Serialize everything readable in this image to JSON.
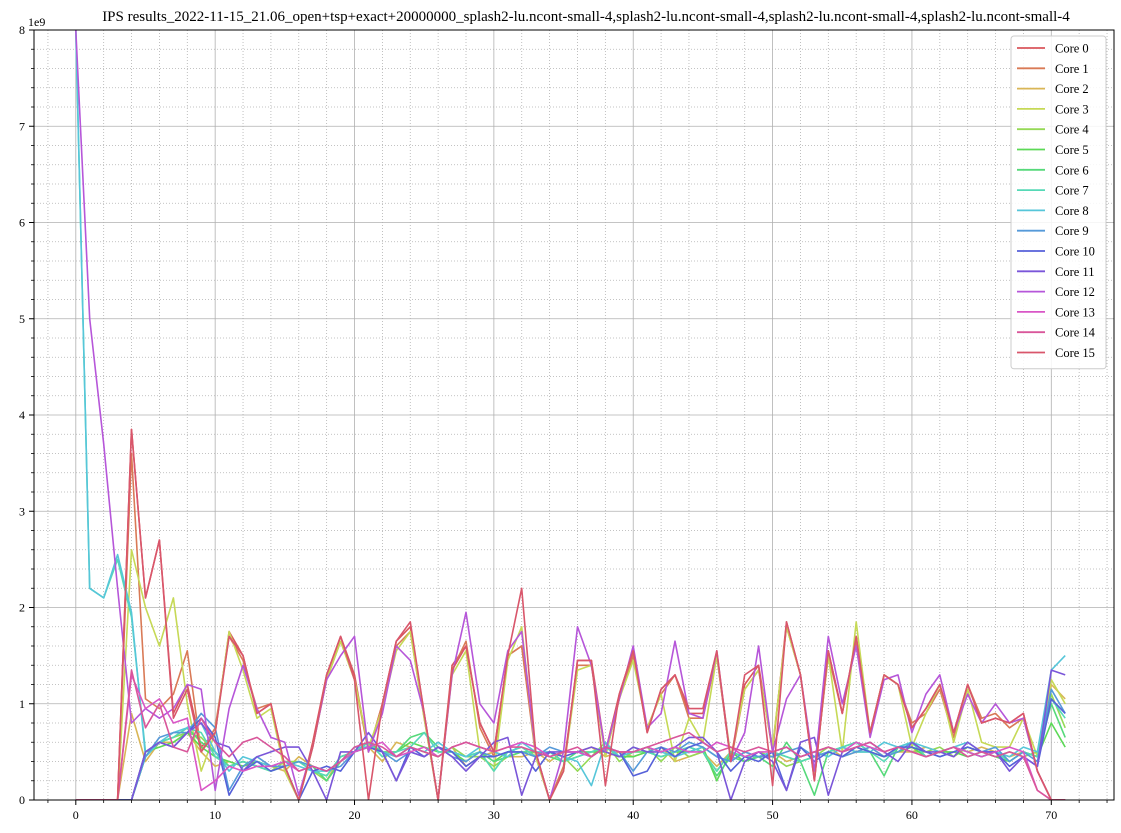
{
  "chart_data": {
    "type": "line",
    "title": "IPS results_2022-11-15_21.06_open+tsp+exact+20000000_splash2-lu.ncont-small-4,splash2-lu.ncont-small-4,splash2-lu.ncont-small-4,splash2-lu.ncont-small-4",
    "xlabel": "",
    "ylabel": "",
    "y_exponent_label": "1e9",
    "xlim": [
      -3,
      74.5
    ],
    "ylim": [
      0,
      8
    ],
    "x_ticks": [
      0,
      10,
      20,
      30,
      40,
      50,
      60,
      70
    ],
    "y_ticks": [
      0,
      1,
      2,
      3,
      4,
      5,
      6,
      7,
      8
    ],
    "grid": "major solid, minor dotted",
    "legend_position": "top-right",
    "series": [
      {
        "name": "Core 0",
        "color": "#d9565c",
        "values": [
          0,
          0,
          0,
          0,
          3.85,
          2.1,
          2.7,
          0.9,
          1.2,
          0.55,
          0.7,
          1.75,
          1.5,
          0.9,
          1.0,
          0.35,
          0,
          0.6,
          1.3,
          1.7,
          1.3,
          0.5,
          1.0,
          1.65,
          1.8,
          0.9,
          0,
          1.4,
          1.6,
          0.8,
          0.5,
          1.5,
          1.6,
          0.5,
          0,
          0.3,
          1.45,
          1.45,
          0.5,
          1.1,
          1.55,
          0.7,
          1.15,
          1.3,
          0.9,
          0.9,
          1.5,
          0.4,
          1.2,
          1.4,
          0.5,
          1.85,
          1.3,
          0.2,
          1.55,
          0.9,
          1.7,
          0.7,
          1.3,
          1.2,
          0.75,
          0.95,
          1.2,
          0.7,
          1.2,
          0.8,
          0.85,
          0.8,
          0.9,
          0.3,
          0,
          0
        ]
      },
      {
        "name": "Core 1",
        "color": "#d97a56",
        "values": [
          0,
          0,
          0,
          0,
          3.6,
          1.05,
          0.95,
          1.1,
          1.55,
          0.5,
          0.75,
          1.7,
          1.45,
          0.95,
          1.0,
          0.3,
          0,
          0.55,
          1.25,
          1.65,
          1.25,
          0.5,
          1.0,
          1.6,
          1.75,
          0.85,
          0,
          1.35,
          1.65,
          0.75,
          0.45,
          1.5,
          1.6,
          0.45,
          0,
          0.35,
          1.4,
          1.4,
          0.45,
          1.05,
          1.5,
          0.75,
          1.1,
          1.3,
          0.85,
          0.85,
          1.5,
          0.4,
          1.15,
          1.35,
          0.55,
          1.8,
          1.3,
          0.25,
          1.5,
          0.9,
          1.65,
          0.7,
          1.3,
          1.2,
          0.8,
          0.9,
          1.15,
          0.65,
          1.2,
          0.85,
          0.9,
          0.75,
          0.85,
          0.3,
          0,
          0
        ]
      },
      {
        "name": "Core 2",
        "color": "#d9b656",
        "values": [
          0,
          0,
          0,
          0,
          0.9,
          0.4,
          0.6,
          0.6,
          0.7,
          0.5,
          0.35,
          0.4,
          0.35,
          0.4,
          0.35,
          0.3,
          0.45,
          0.35,
          0.2,
          0.45,
          0.5,
          0.55,
          0.4,
          0.6,
          0.55,
          0.5,
          0.45,
          0.55,
          0.35,
          0.45,
          0.5,
          0.45,
          0.45,
          0.5,
          0.4,
          0.5,
          0.5,
          0.55,
          0.45,
          0.5,
          0.45,
          0.5,
          0.55,
          0.4,
          0.45,
          0.5,
          0.35,
          0.5,
          0.4,
          0.45,
          0.5,
          0.4,
          0.45,
          0.5,
          0.55,
          0.45,
          0.5,
          0.55,
          0.45,
          0.5,
          0.5,
          0.55,
          0.5,
          0.55,
          0.5,
          0.55,
          0.5,
          0.45,
          0.5,
          0.45,
          1.2,
          1.05
        ]
      },
      {
        "name": "Core 3",
        "color": "#c6d956",
        "values": [
          0,
          0,
          0,
          0,
          2.6,
          2.0,
          1.6,
          2.1,
          1.0,
          0.3,
          0.7,
          1.75,
          1.35,
          0.85,
          0.95,
          0.3,
          0,
          0.55,
          1.25,
          1.65,
          1.25,
          0.55,
          0.95,
          1.55,
          1.75,
          0.85,
          0,
          1.3,
          1.55,
          0.5,
          0.3,
          1.45,
          1.8,
          0.45,
          0,
          0.3,
          1.35,
          1.4,
          0.45,
          1.05,
          1.45,
          0.75,
          1.1,
          0.4,
          0.85,
          0.6,
          1.5,
          0.45,
          1.15,
          1.35,
          0.55,
          1.8,
          1.3,
          0.25,
          1.5,
          0.5,
          1.85,
          0.7,
          1.3,
          1.2,
          0.55,
          0.9,
          1.2,
          0.6,
          1.15,
          0.6,
          0.55,
          0.55,
          0.85,
          0.45,
          1.25,
          1.0
        ]
      },
      {
        "name": "Core 4",
        "color": "#95d956",
        "values": [
          0,
          0,
          0,
          0,
          0,
          0.45,
          0.6,
          0.65,
          0.7,
          0.65,
          0.5,
          0.35,
          0.4,
          0.35,
          0.3,
          0.4,
          0.4,
          0.3,
          0.2,
          0.4,
          0.5,
          0.55,
          0.5,
          0.45,
          0.55,
          0.5,
          0.45,
          0.55,
          0.45,
          0.45,
          0.35,
          0.45,
          0.5,
          0.45,
          0.5,
          0.45,
          0.3,
          0.45,
          0.6,
          0.4,
          0.5,
          0.55,
          0.4,
          0.55,
          0.45,
          0.5,
          0.3,
          0.5,
          0.45,
          0.5,
          0.45,
          0.35,
          0.4,
          0.45,
          0.55,
          0.5,
          0.55,
          0.5,
          0.45,
          0.55,
          0.5,
          0.5,
          0.55,
          0.45,
          0.55,
          0.5,
          0.45,
          0.5,
          0.45,
          0.5,
          1.1,
          0.75
        ]
      },
      {
        "name": "Core 5",
        "color": "#5cd956",
        "values": [
          0,
          0,
          0,
          0,
          0,
          0.5,
          0.55,
          0.6,
          0.7,
          0.55,
          0.45,
          0.4,
          0.35,
          0.4,
          0.35,
          0.35,
          0.4,
          0.3,
          0.25,
          0.45,
          0.5,
          0.6,
          0.45,
          0.5,
          0.6,
          0.55,
          0.5,
          0.5,
          0.4,
          0.5,
          0.4,
          0.5,
          0.55,
          0.45,
          0.5,
          0.4,
          0.45,
          0.5,
          0.5,
          0.45,
          0.45,
          0.5,
          0.45,
          0.5,
          0.5,
          0.55,
          0.2,
          0.5,
          0.4,
          0.45,
          0.5,
          0.45,
          0.4,
          0.45,
          0.5,
          0.55,
          0.5,
          0.5,
          0.45,
          0.5,
          0.55,
          0.45,
          0.5,
          0.5,
          0.45,
          0.5,
          0.45,
          0.4,
          0.5,
          0.45,
          0.8,
          0.55
        ]
      },
      {
        "name": "Core 6",
        "color": "#56d97a",
        "values": [
          0,
          0,
          0,
          0,
          0,
          0.45,
          0.6,
          0.65,
          0.75,
          0.6,
          0.5,
          0.35,
          0.4,
          0.35,
          0.3,
          0.35,
          0.4,
          0.35,
          0.2,
          0.4,
          0.5,
          0.6,
          0.5,
          0.5,
          0.65,
          0.7,
          0.55,
          0.5,
          0.45,
          0.5,
          0.4,
          0.45,
          0.5,
          0.5,
          0.45,
          0.4,
          0.5,
          0.5,
          0.55,
          0.45,
          0.5,
          0.5,
          0.45,
          0.5,
          0.55,
          0.5,
          0.25,
          0.45,
          0.4,
          0.45,
          0.35,
          0.6,
          0.4,
          0.05,
          0.5,
          0.55,
          0.6,
          0.5,
          0.25,
          0.55,
          0.6,
          0.45,
          0.5,
          0.55,
          0.5,
          0.45,
          0.5,
          0.4,
          0.5,
          0.45,
          1.0,
          0.65
        ]
      },
      {
        "name": "Core 7",
        "color": "#56d9b6",
        "values": [
          8,
          2.2,
          2.1,
          2.5,
          1.9,
          0.5,
          0.6,
          0.65,
          0.75,
          0.7,
          0.45,
          0.35,
          0.4,
          0.35,
          0.3,
          0.35,
          0.4,
          0.3,
          0.25,
          0.45,
          0.5,
          0.6,
          0.45,
          0.5,
          0.55,
          0.7,
          0.5,
          0.5,
          0.45,
          0.5,
          0.3,
          0.5,
          0.55,
          0.45,
          0.5,
          0.4,
          0.45,
          0.5,
          0.55,
          0.45,
          0.55,
          0.5,
          0.45,
          0.5,
          0.55,
          0.5,
          0.3,
          0.5,
          0.45,
          0.45,
          0.5,
          0.45,
          0.4,
          0.45,
          0.5,
          0.55,
          0.6,
          0.5,
          0.4,
          0.55,
          0.6,
          0.45,
          0.5,
          0.55,
          0.5,
          0.45,
          0.5,
          0.4,
          0.5,
          0.45,
          1.05,
          0.85
        ]
      },
      {
        "name": "Core 8",
        "color": "#56c6d9",
        "values": [
          8,
          2.2,
          2.1,
          2.55,
          1.95,
          0.45,
          0.6,
          0.7,
          0.75,
          0.8,
          0.5,
          0.3,
          0.45,
          0.4,
          0.35,
          0.4,
          0.35,
          0.3,
          0.3,
          0.4,
          0.55,
          0.55,
          0.5,
          0.45,
          0.55,
          0.5,
          0.6,
          0.5,
          0.45,
          0.55,
          0.5,
          0.45,
          0.6,
          0.5,
          0.5,
          0.45,
          0.4,
          0.15,
          0.6,
          0.45,
          0.5,
          0.55,
          0.5,
          0.45,
          0.5,
          0.55,
          0.45,
          0.4,
          0.5,
          0.45,
          0.5,
          0.55,
          0.45,
          0.5,
          0.45,
          0.55,
          0.5,
          0.5,
          0.6,
          0.55,
          0.6,
          0.55,
          0.5,
          0.55,
          0.6,
          0.5,
          0.5,
          0.45,
          0.55,
          0.5,
          1.35,
          1.5
        ]
      },
      {
        "name": "Core 9",
        "color": "#569ad9",
        "values": [
          0,
          0,
          0,
          0,
          0,
          0.45,
          0.65,
          0.7,
          0.7,
          0.9,
          0.75,
          0.1,
          0.35,
          0.45,
          0.35,
          0.35,
          0.4,
          0.35,
          0.3,
          0.35,
          0.5,
          0.55,
          0.5,
          0.4,
          0.5,
          0.45,
          0.55,
          0.45,
          0.4,
          0.5,
          0.45,
          0.5,
          0.5,
          0.45,
          0.55,
          0.5,
          0.5,
          0.45,
          0.55,
          0.5,
          0.3,
          0.5,
          0.55,
          0.5,
          0.6,
          0.55,
          0.45,
          0.4,
          0.5,
          0.45,
          0.45,
          0.5,
          0.55,
          0.45,
          0.5,
          0.45,
          0.5,
          0.55,
          0.45,
          0.5,
          0.6,
          0.5,
          0.45,
          0.5,
          0.55,
          0.5,
          0.55,
          0.4,
          0.5,
          0.4,
          1.15,
          0.9
        ]
      },
      {
        "name": "Core 10",
        "color": "#5661d9",
        "values": [
          0,
          0,
          0,
          0,
          0,
          0.5,
          0.6,
          0.55,
          0.7,
          0.85,
          0.65,
          0.05,
          0.3,
          0.4,
          0.3,
          0.35,
          0,
          0.3,
          0.35,
          0.3,
          0.5,
          0.55,
          0.5,
          0.2,
          0.55,
          0.45,
          0.55,
          0.5,
          0.35,
          0.45,
          0.45,
          0.5,
          0.5,
          0.3,
          0.5,
          0.45,
          0.5,
          0.45,
          0.55,
          0.5,
          0.25,
          0.3,
          0.55,
          0.45,
          0.55,
          0.6,
          0.5,
          0.3,
          0.45,
          0.4,
          0.5,
          0.1,
          0.55,
          0.4,
          0.5,
          0.45,
          0.55,
          0.5,
          0.45,
          0.55,
          0.55,
          0.5,
          0.45,
          0.5,
          0.55,
          0.5,
          0.5,
          0.35,
          0.45,
          0.35,
          1.05,
          0.9
        ]
      },
      {
        "name": "Core 11",
        "color": "#7a56d9",
        "values": [
          0,
          0,
          0,
          0,
          0,
          0.5,
          0.6,
          0.55,
          0.7,
          0.8,
          0.6,
          0.55,
          0.3,
          0.45,
          0.5,
          0.55,
          0.55,
          0.3,
          0,
          0.5,
          0.5,
          0.7,
          0.5,
          0.2,
          0.5,
          0.45,
          0.55,
          0.45,
          0.3,
          0.45,
          0.6,
          0.65,
          0.05,
          0.45,
          0.5,
          0.5,
          0.5,
          0.55,
          0.5,
          0.45,
          0.55,
          0.5,
          0.5,
          0.55,
          0.65,
          0.65,
          0.5,
          0,
          0.4,
          0.5,
          0.4,
          0.1,
          0.6,
          0.65,
          0.05,
          0.5,
          0.55,
          0.6,
          0.5,
          0.4,
          0.6,
          0.5,
          0.5,
          0.45,
          0.6,
          0.5,
          0.5,
          0.3,
          0.45,
          0.35,
          1.35,
          1.3
        ]
      },
      {
        "name": "Core 12",
        "color": "#b656d9",
        "values": [
          8,
          5.0,
          3.7,
          2.2,
          0.8,
          0.95,
          0.85,
          0.95,
          1.2,
          1.15,
          0.1,
          0.95,
          1.4,
          0.95,
          0.65,
          0.6,
          0.05,
          0.55,
          1.25,
          1.5,
          1.7,
          0.5,
          0.9,
          1.6,
          1.45,
          0.9,
          0,
          1.3,
          1.95,
          1.0,
          0.8,
          1.55,
          1.75,
          0.5,
          0,
          0.5,
          1.8,
          1.4,
          0.5,
          1.05,
          1.6,
          0.75,
          0.9,
          1.65,
          0.9,
          0.85,
          1.55,
          0.4,
          0.7,
          1.6,
          0.5,
          1.05,
          1.3,
          0.3,
          1.7,
          1.0,
          1.6,
          0.65,
          1.25,
          1.3,
          0.7,
          1.1,
          1.3,
          0.7,
          1.1,
          0.8,
          1.0,
          0.8,
          0.85,
          0.3,
          0,
          0
        ]
      },
      {
        "name": "Core 13",
        "color": "#d956c6",
        "values": [
          0,
          0,
          0,
          0,
          1.3,
          0.95,
          1.05,
          0.8,
          0.85,
          0.1,
          0.2,
          0.35,
          0.3,
          0.35,
          0.35,
          0.4,
          0.3,
          0.35,
          0.3,
          0.4,
          0.5,
          0.55,
          0.6,
          0.45,
          0.5,
          0.55,
          0.45,
          0.55,
          0.6,
          0.55,
          0.5,
          0.55,
          0.6,
          0.55,
          0.45,
          0.5,
          0.5,
          0.45,
          0.55,
          0.5,
          0.5,
          0.55,
          0.5,
          0.55,
          0.5,
          0.5,
          0.6,
          0.55,
          0.45,
          0.5,
          0.5,
          0.55,
          0.45,
          0.5,
          0.55,
          0.5,
          0.6,
          0.55,
          0.5,
          0.55,
          0.5,
          0.45,
          0.5,
          0.55,
          0.5,
          0.45,
          0.5,
          0.55,
          0.5,
          0.1,
          0,
          0
        ]
      },
      {
        "name": "Core 14",
        "color": "#d9569a",
        "values": [
          0,
          0,
          0,
          0,
          1.35,
          0.75,
          1.0,
          0.55,
          0.5,
          0.85,
          0.6,
          0.45,
          0.6,
          0.65,
          0.55,
          0.45,
          0.3,
          0.35,
          0.3,
          0.4,
          0.55,
          0.6,
          0.55,
          0.45,
          0.55,
          0.5,
          0.45,
          0.55,
          0.6,
          0.55,
          0.5,
          0.55,
          0.55,
          0.5,
          0.45,
          0.5,
          0.55,
          0.45,
          0.55,
          0.5,
          0.5,
          0.55,
          0.6,
          0.65,
          0.7,
          0.6,
          0.5,
          0.55,
          0.5,
          0.55,
          0.5,
          0.55,
          0.45,
          0.5,
          0.55,
          0.5,
          0.55,
          0.6,
          0.5,
          0.55,
          0.5,
          0.45,
          0.5,
          0.55,
          0.45,
          0.5,
          0.45,
          0.5,
          0.45,
          0.1,
          0,
          0
        ]
      },
      {
        "name": "Core 15",
        "color": "#d9566b",
        "values": [
          0,
          0,
          0,
          0,
          3.85,
          2.1,
          2.7,
          0.85,
          1.15,
          0.5,
          0.7,
          1.7,
          1.5,
          0.9,
          1.0,
          0.35,
          0,
          0.55,
          1.3,
          1.7,
          1.25,
          0,
          1.0,
          1.65,
          1.85,
          0.9,
          0,
          1.35,
          1.6,
          0.8,
          0.5,
          1.5,
          2.2,
          0.5,
          0,
          0.3,
          1.45,
          1.45,
          0.15,
          1.1,
          1.55,
          0.7,
          1.15,
          1.3,
          0.95,
          0.95,
          1.55,
          0.4,
          1.3,
          1.4,
          0.15,
          1.85,
          1.3,
          0.2,
          1.55,
          0.9,
          1.7,
          0.7,
          1.3,
          1.2,
          0.75,
          0.95,
          1.2,
          0.7,
          1.2,
          0.8,
          0.85,
          0.8,
          0.9,
          0.3,
          0,
          0
        ]
      }
    ]
  }
}
